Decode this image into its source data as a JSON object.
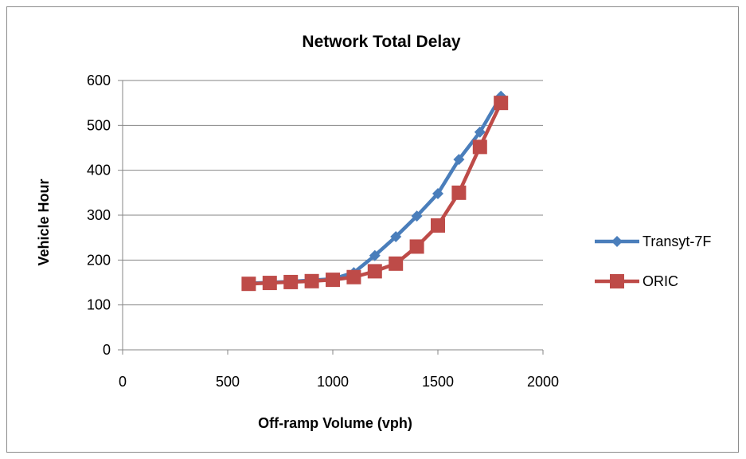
{
  "chart_data": {
    "type": "line",
    "title": "Network Total Delay",
    "xlabel": "Off-ramp Volume (vph)",
    "ylabel": "Vehicle Hour",
    "xlim": [
      0,
      2000
    ],
    "ylim": [
      0,
      600
    ],
    "x_ticks": [
      0,
      500,
      1000,
      1500,
      2000
    ],
    "y_ticks": [
      0,
      100,
      200,
      300,
      400,
      500,
      600
    ],
    "grid": "horizontal",
    "legend_position": "right",
    "series": [
      {
        "name": "Transyt-7F",
        "color": "#4a7ebb",
        "marker": "diamond",
        "x": [
          600,
          700,
          800,
          900,
          1000,
          1100,
          1200,
          1300,
          1400,
          1500,
          1600,
          1700,
          1800
        ],
        "y": [
          148,
          150,
          152,
          155,
          158,
          172,
          210,
          252,
          298,
          348,
          424,
          485,
          565
        ]
      },
      {
        "name": "ORIC",
        "color": "#be4b48",
        "marker": "square",
        "x": [
          600,
          700,
          800,
          900,
          1000,
          1100,
          1200,
          1300,
          1400,
          1500,
          1600,
          1700,
          1800
        ],
        "y": [
          147,
          149,
          151,
          153,
          156,
          162,
          175,
          192,
          230,
          277,
          350,
          452,
          550
        ]
      }
    ]
  }
}
